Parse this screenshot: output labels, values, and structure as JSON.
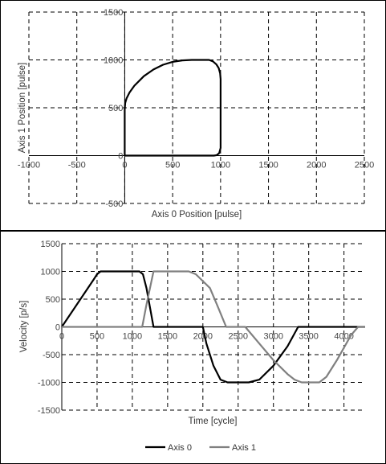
{
  "chart_data": [
    {
      "type": "line",
      "xlabel": "Axis 0 Position [pulse]",
      "ylabel": "Axis 1 Position [pulse]",
      "xlim": [
        -1000,
        2500
      ],
      "ylim": [
        -500,
        1500
      ],
      "xticks": [
        -1000,
        -500,
        0,
        500,
        1000,
        1500,
        2000,
        2500
      ],
      "yticks": [
        -500,
        0,
        500,
        1000,
        1500
      ],
      "xtick_labels": [
        "-1000",
        "-500",
        "0",
        "500",
        "1000",
        "1500",
        "2000",
        "2500"
      ],
      "ytick_labels": [
        "-500",
        "0",
        "500",
        "1000",
        "1500"
      ],
      "grid": true,
      "series": [
        {
          "color": "#000000",
          "x": [
            0,
            930,
            960,
            985,
            1000,
            1000,
            995,
            980,
            955,
            920,
            880,
            700,
            600,
            500,
            400,
            300,
            200,
            100,
            50,
            20,
            5,
            0,
            0
          ],
          "y": [
            0,
            0,
            5,
            25,
            80,
            800,
            860,
            915,
            955,
            985,
            1000,
            1000,
            995,
            980,
            950,
            900,
            830,
            730,
            660,
            600,
            550,
            480,
            0
          ]
        }
      ]
    },
    {
      "type": "line",
      "xlabel": "Time [cycle]",
      "ylabel": "Velocity [p/s]",
      "xlim": [
        0,
        4300
      ],
      "ylim": [
        -1500,
        1500
      ],
      "xticks": [
        0,
        500,
        1000,
        1500,
        2000,
        2500,
        3000,
        3500,
        4000
      ],
      "yticks": [
        -1500,
        -1000,
        -500,
        0,
        500,
        1000,
        1500
      ],
      "xtick_labels": [
        "0",
        "500",
        "1000",
        "1500",
        "2000",
        "2500",
        "3000",
        "3500",
        "4000"
      ],
      "ytick_labels": [
        "-1500",
        "-1000",
        "-500",
        "0",
        "500",
        "1000",
        "1500"
      ],
      "grid": true,
      "legend": "bottom",
      "series": [
        {
          "name": "Axis 0",
          "color": "#000000",
          "x": [
            0,
            450,
            500,
            550,
            1100,
            1150,
            1200,
            1300,
            1310,
            1950,
            2000,
            2050,
            2150,
            2250,
            2350,
            2650,
            2800,
            3000,
            3200,
            3350,
            4300
          ],
          "y": [
            0,
            850,
            950,
            1000,
            1000,
            950,
            700,
            0,
            0,
            0,
            0,
            -300,
            -700,
            -950,
            -1000,
            -1000,
            -950,
            -700,
            -350,
            0,
            0
          ]
        },
        {
          "name": "Axis 1",
          "color": "#808080",
          "x": [
            0,
            1140,
            1200,
            1300,
            1800,
            1900,
            2100,
            2200,
            2330,
            2600,
            2800,
            3000,
            3200,
            3300,
            3400,
            3500,
            3650,
            3750,
            3900,
            4100,
            4200,
            4300
          ],
          "y": [
            0,
            0,
            400,
            1000,
            1000,
            950,
            700,
            400,
            0,
            0,
            -300,
            -600,
            -850,
            -950,
            -1000,
            -1000,
            -1000,
            -900,
            -600,
            -150,
            0,
            0
          ]
        }
      ]
    }
  ]
}
